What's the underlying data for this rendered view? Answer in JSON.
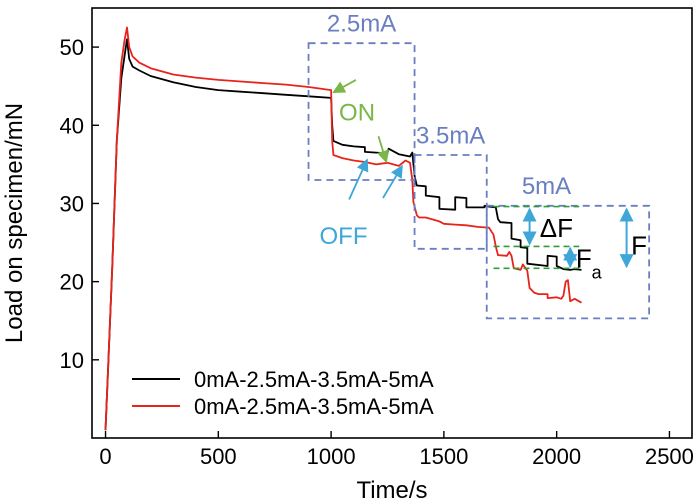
{
  "chart_data": {
    "type": "line",
    "xlabel": "Time/s",
    "ylabel": "Load on specimen/mN",
    "xlim": [
      -60,
      2600
    ],
    "ylim": [
      0,
      55
    ],
    "xticks": [
      0,
      500,
      1000,
      1500,
      2000,
      2500
    ],
    "yticks": [
      10,
      20,
      30,
      40,
      50
    ],
    "legend": {
      "position": "bottom-left",
      "entries": [
        {
          "label": "0mA-2.5mA-3.5mA-5mA",
          "color": "#000000"
        },
        {
          "label": "0mA-2.5mA-3.5mA-5mA",
          "color": "#e8231c"
        }
      ]
    },
    "series": [
      {
        "name": "0mA-2.5mA-3.5mA-5mA",
        "color": "#000000",
        "x": [
          0,
          10,
          30,
          50,
          70,
          85,
          95,
          105,
          120,
          150,
          200,
          300,
          400,
          500,
          600,
          700,
          800,
          900,
          1000,
          1005,
          1010,
          1050,
          1100,
          1150,
          1150,
          1200,
          1250,
          1255,
          1300,
          1350,
          1360,
          1370,
          1380,
          1420,
          1420,
          1480,
          1480,
          1550,
          1550,
          1600,
          1600,
          1680,
          1680,
          1700,
          1730,
          1740,
          1750,
          1800,
          1800,
          1840,
          1840,
          1870,
          1870,
          1960,
          1960,
          2000,
          2000,
          2030,
          2060,
          2080,
          2110
        ],
        "y": [
          1,
          8,
          22,
          38,
          46,
          49,
          51,
          48.5,
          47.5,
          47,
          46.3,
          45.5,
          44.9,
          44.5,
          44.3,
          44.1,
          43.9,
          43.7,
          43.5,
          40,
          38,
          37.5,
          37.3,
          37.2,
          36.6,
          36.5,
          36.4,
          37,
          36.3,
          36,
          36.5,
          33.5,
          32.3,
          32.2,
          31,
          30.8,
          29.3,
          29.2,
          30.8,
          30.7,
          29.5,
          29.5,
          29.7,
          29.6,
          29.5,
          28,
          27.6,
          27.5,
          25.5,
          25.3,
          24.4,
          24.3,
          22.3,
          22,
          23.3,
          23.2,
          22,
          21.6,
          21.5,
          21.6,
          21.5
        ]
      },
      {
        "name": "0mA-2.5mA-3.5mA-5mA",
        "color": "#e8231c",
        "x": [
          0,
          10,
          30,
          50,
          70,
          85,
          95,
          105,
          120,
          150,
          200,
          300,
          400,
          500,
          600,
          700,
          800,
          900,
          1000,
          1005,
          1010,
          1050,
          1100,
          1150,
          1200,
          1250,
          1300,
          1330,
          1350,
          1360,
          1365,
          1380,
          1390,
          1420,
          1480,
          1500,
          1550,
          1600,
          1650,
          1700,
          1720,
          1730,
          1740,
          1780,
          1790,
          1800,
          1810,
          1840,
          1850,
          1870,
          1880,
          1900,
          1920,
          1960,
          1960,
          2000,
          2020,
          2030,
          2040,
          2050,
          2060,
          2080,
          2110
        ],
        "y": [
          1,
          8,
          22,
          38,
          48,
          51,
          52.5,
          50,
          48.8,
          48,
          47.3,
          46.5,
          46.1,
          45.8,
          45.6,
          45.4,
          45.2,
          44.9,
          44.5,
          38,
          36.2,
          35.8,
          35.5,
          35.3,
          35,
          35.2,
          34.8,
          35.5,
          35.2,
          33,
          30.2,
          28.5,
          28.2,
          28.2,
          27.7,
          27.4,
          27.3,
          27.2,
          27,
          26.9,
          26,
          24.5,
          23.4,
          23.3,
          23.8,
          23.3,
          21.7,
          21.5,
          22.2,
          21.4,
          19.2,
          18.6,
          18.4,
          18.4,
          17.9,
          18,
          17.8,
          18.2,
          20,
          20.2,
          17.5,
          17.8,
          17.3
        ]
      }
    ],
    "annotations": {
      "box_labels": [
        "2.5mA",
        "3.5mA",
        "5mA"
      ],
      "on_label": "ON",
      "off_label": "OFF",
      "delta_f_label": "ΔF",
      "fa_label": "F",
      "fa_sub": "a",
      "f_label": "F"
    },
    "colors": {
      "box": "#6a7fc0",
      "on": "#7ab648",
      "off": "#3fa6d8",
      "guide": "#2e9e3a",
      "arrow": "#3fa6d8"
    }
  }
}
